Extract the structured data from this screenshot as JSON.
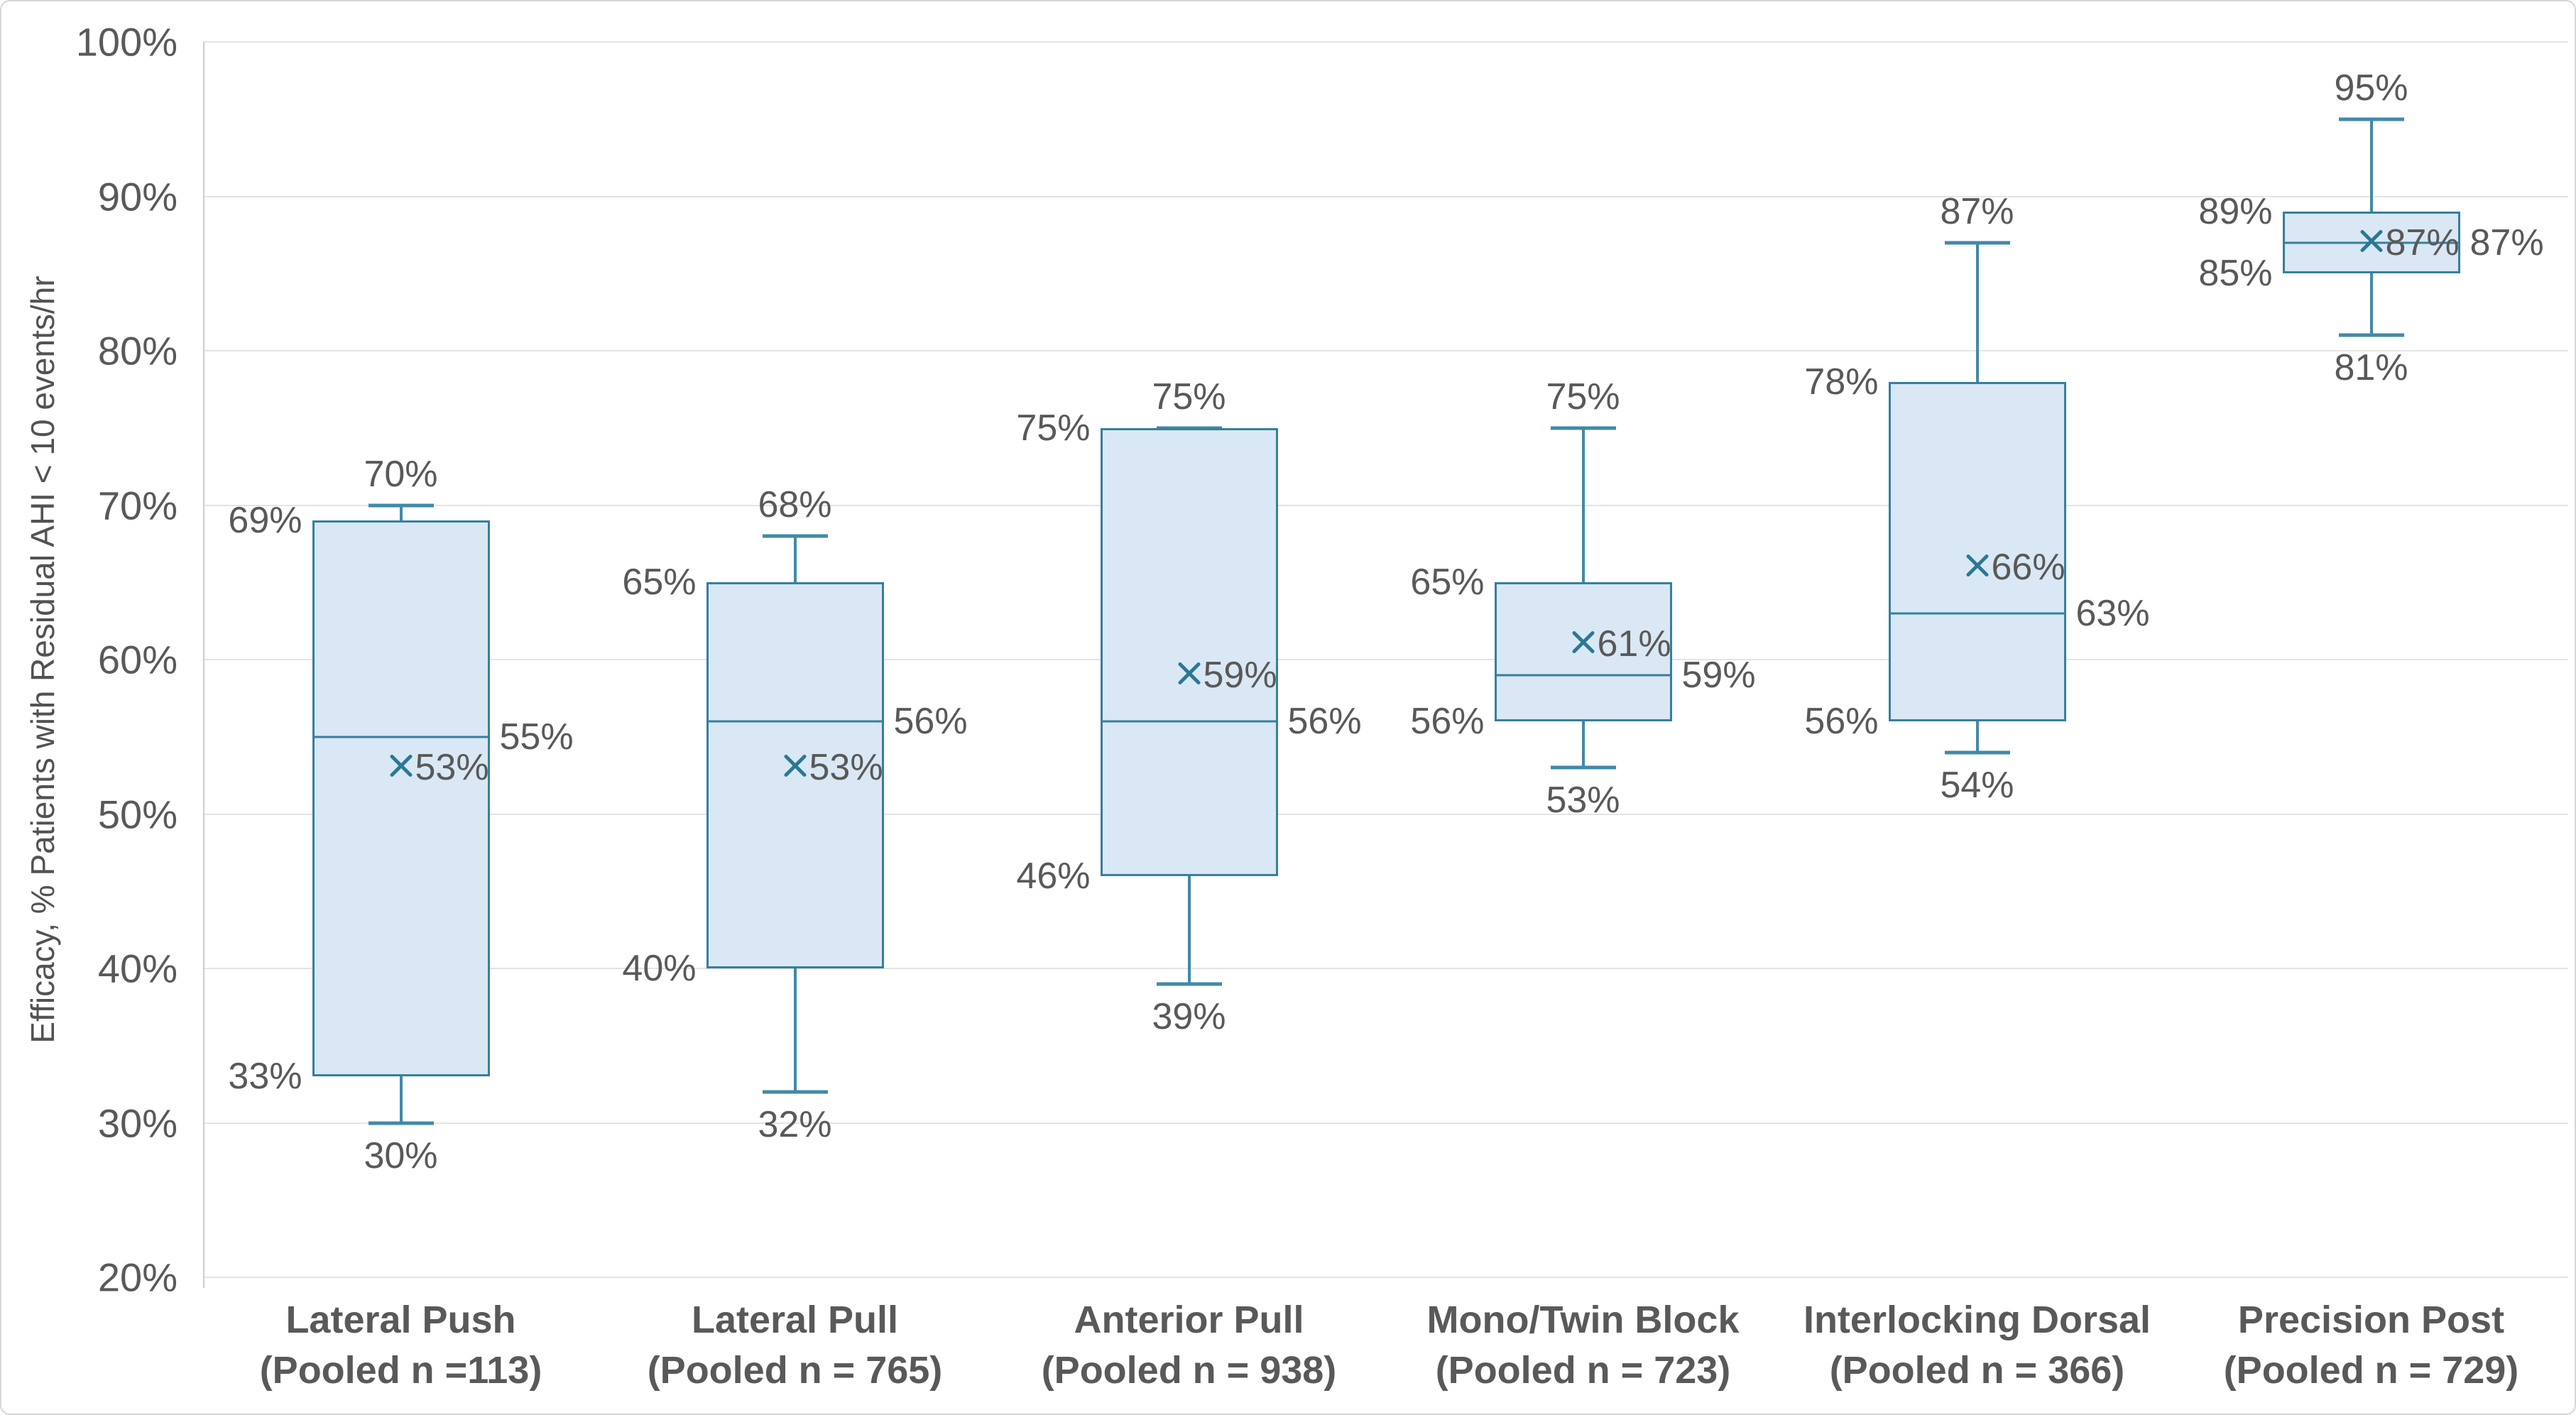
{
  "chart_data": {
    "type": "box",
    "title": "",
    "ylabel": "Efficacy, % Patients with Residual AHI < 10 events/hr",
    "xlabel": "",
    "ylim": [
      20,
      100
    ],
    "grid": true,
    "legend": "none",
    "yticks": [
      {
        "value": 100,
        "label": "100%"
      },
      {
        "value": 90,
        "label": "90%"
      },
      {
        "value": 80,
        "label": "80%"
      },
      {
        "value": 70,
        "label": "70%"
      },
      {
        "value": 60,
        "label": "60%"
      },
      {
        "value": 50,
        "label": "50%"
      },
      {
        "value": 40,
        "label": "40%"
      },
      {
        "value": 30,
        "label": "30%"
      },
      {
        "value": 20,
        "label": "20%"
      }
    ],
    "categories": [
      {
        "name": "Lateral Push",
        "pooled": "(Pooled n =113)"
      },
      {
        "name": "Lateral Pull",
        "pooled": "(Pooled n = 765)"
      },
      {
        "name": "Anterior Pull",
        "pooled": "(Pooled n = 938)"
      },
      {
        "name": "Mono/Twin Block",
        "pooled": "(Pooled n = 723)"
      },
      {
        "name": "Interlocking Dorsal",
        "pooled": "(Pooled n = 366)"
      },
      {
        "name": "Precision Post",
        "pooled": "(Pooled n = 729)"
      }
    ],
    "series": [
      {
        "category": "Lateral Push",
        "whisker_high": 70,
        "q3": 69,
        "median": 55,
        "mean": 53,
        "q1": 33,
        "whisker_low": 30,
        "labels": {
          "whisker_high": "70%",
          "q3": "69%",
          "median": "55%",
          "mean": "53%",
          "q1": "33%",
          "whisker_low": "30%"
        }
      },
      {
        "category": "Lateral Pull",
        "whisker_high": 68,
        "q3": 65,
        "median": 56,
        "mean": 53,
        "q1": 40,
        "whisker_low": 32,
        "labels": {
          "whisker_high": "68%",
          "q3": "65%",
          "median": "56%",
          "mean": "53%",
          "q1": "40%",
          "whisker_low": "32%"
        }
      },
      {
        "category": "Anterior Pull",
        "whisker_high": 75,
        "q3": 75,
        "median": 56,
        "mean": 59,
        "q1": 46,
        "whisker_low": 39,
        "labels": {
          "whisker_high": "75%",
          "q3": "75%",
          "median": "56%",
          "mean": "59%",
          "q1": "46%",
          "whisker_low": "39%"
        }
      },
      {
        "category": "Mono/Twin Block",
        "whisker_high": 75,
        "q3": 65,
        "median": 59,
        "mean": 61,
        "q1": 56,
        "whisker_low": 53,
        "labels": {
          "whisker_high": "75%",
          "q3": "65%",
          "median": "59%",
          "mean": "61%",
          "q1": "56%",
          "whisker_low": "53%"
        }
      },
      {
        "category": "Interlocking Dorsal",
        "whisker_high": 87,
        "q3": 78,
        "median": 63,
        "mean": 66,
        "q1": 56,
        "whisker_low": 54,
        "labels": {
          "whisker_high": "87%",
          "q3": "78%",
          "median": "63%",
          "mean": "66%",
          "q1": "56%",
          "whisker_low": "54%"
        }
      },
      {
        "category": "Precision Post",
        "whisker_high": 95,
        "q3": 89,
        "median": 87,
        "mean": 87,
        "q1": 85,
        "whisker_low": 81,
        "labels": {
          "whisker_high": "95%",
          "q3": "89%",
          "median": "87%",
          "mean": "87%",
          "q1": "85%",
          "whisker_low": "81%"
        }
      }
    ],
    "colors": {
      "box_fill": "#d9e8f4",
      "box_border": "#35809e",
      "whisker": "#4189a8",
      "median_line": "#35809e",
      "mean_marker": "#2c7795",
      "label_text": "#595959",
      "gridline": "#e4e4e4"
    }
  }
}
